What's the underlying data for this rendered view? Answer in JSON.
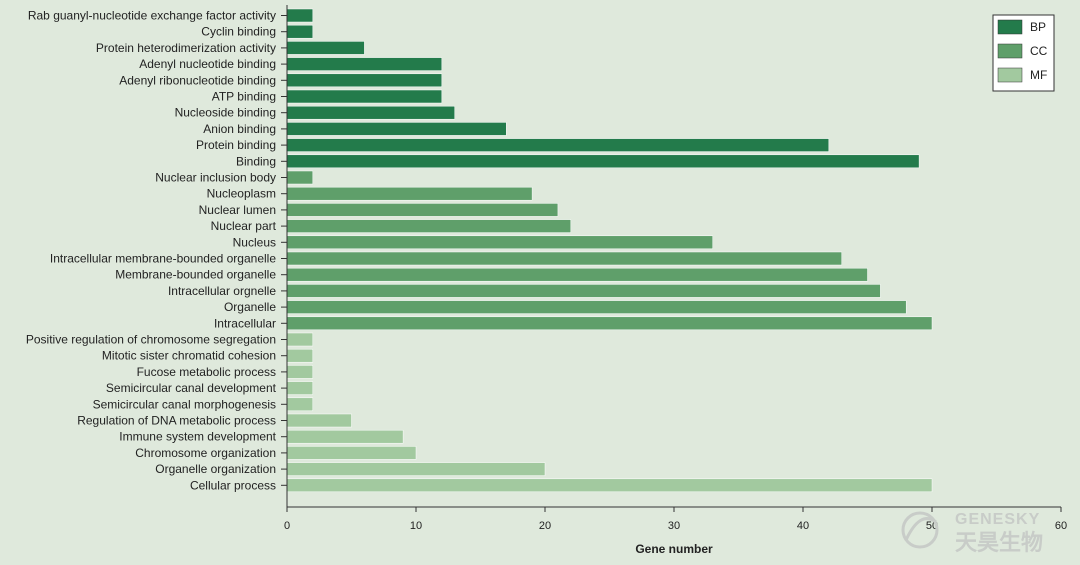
{
  "chart_data": {
    "type": "bar",
    "orientation": "horizontal",
    "xlabel": "Gene number",
    "xlim": [
      0,
      60
    ],
    "xticks": [
      0,
      10,
      20,
      30,
      40,
      50,
      60
    ],
    "grid": false,
    "legend_position": "top-right",
    "series": [
      {
        "name": "BP",
        "color": "#237b4b"
      },
      {
        "name": "CC",
        "color": "#5f9f6a"
      },
      {
        "name": "MF",
        "color": "#a2c99f"
      }
    ],
    "categories": [
      "Rab guanyl-nucleotide exchange factor activity",
      "Cyclin binding",
      "Protein heterodimerization activity",
      "Adenyl nucleotide binding",
      "Adenyl ribonucleotide binding",
      "ATP binding",
      "Nucleoside binding",
      "Anion binding",
      "Protein binding",
      "Binding",
      "Nuclear inclusion body",
      "Nucleoplasm",
      "Nuclear lumen",
      "Nuclear part",
      "Nucleus",
      "Intracellular membrane-bounded organelle",
      "Membrane-bounded organelle",
      "Intracellular orgnelle",
      "Organelle",
      "Intracellular",
      "Positive regulation of chromosome segregation",
      "Mitotic sister chromatid cohesion",
      "Fucose metabolic process",
      "Semicircular canal development",
      "Semicircular canal morphogenesis",
      "Regulation of DNA metabolic process",
      "Immune system development",
      "Chromosome organization",
      "Organelle organization",
      "Cellular process"
    ],
    "values": [
      2,
      2,
      6,
      12,
      12,
      12,
      13,
      17,
      42,
      49,
      2,
      19,
      21,
      22,
      33,
      43,
      45,
      46,
      48,
      50,
      2,
      2,
      2,
      2,
      2,
      5,
      9,
      10,
      20,
      50
    ],
    "groups": [
      "BP",
      "BP",
      "BP",
      "BP",
      "BP",
      "BP",
      "BP",
      "BP",
      "BP",
      "BP",
      "CC",
      "CC",
      "CC",
      "CC",
      "CC",
      "CC",
      "CC",
      "CC",
      "CC",
      "CC",
      "MF",
      "MF",
      "MF",
      "MF",
      "MF",
      "MF",
      "MF",
      "MF",
      "MF",
      "MF"
    ]
  },
  "watermark": {
    "text_latin": "GENESKY",
    "text_cjk": "天昊生物"
  }
}
